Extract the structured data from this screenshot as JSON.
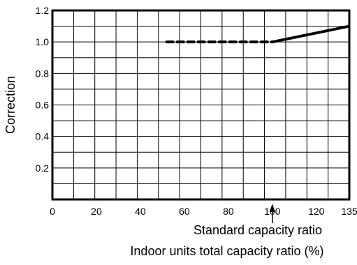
{
  "chart_data": {
    "type": "line",
    "title": "",
    "xlabel": "Indoor units total capacity ratio (%)",
    "ylabel": "Correction",
    "annotation": "Standard capacity ratio",
    "annotation_x": 100,
    "xlim": [
      0,
      135
    ],
    "ylim": [
      0,
      1.2
    ],
    "x_ticks": [
      0,
      20,
      40,
      60,
      80,
      100,
      120,
      135
    ],
    "x_tick_labels": [
      "0",
      "20",
      "40",
      "60",
      "80",
      "100",
      "120",
      "135"
    ],
    "y_ticks": [
      0.2,
      0.4,
      0.6,
      0.8,
      1.0,
      1.2
    ],
    "y_tick_labels": [
      "0.2",
      "0.4",
      "0.6",
      "0.8",
      "1.0",
      "1.2"
    ],
    "grid": true,
    "series": [
      {
        "style": "dashed",
        "x": [
          52,
          100
        ],
        "y": [
          1.0,
          1.0
        ]
      },
      {
        "style": "solid",
        "x": [
          100,
          135
        ],
        "y": [
          1.0,
          1.1
        ]
      }
    ]
  }
}
